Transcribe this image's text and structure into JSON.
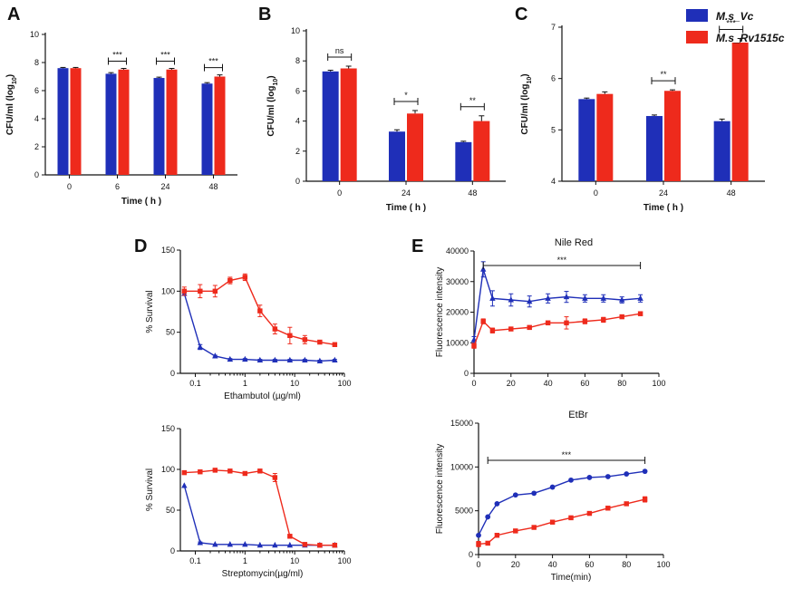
{
  "colors": {
    "vc": "#1f2fb8",
    "rv": "#ee2a1c",
    "axis": "#111111"
  },
  "legend": [
    {
      "key": "vc",
      "label": "M.s_Vc"
    },
    {
      "key": "rv",
      "label": "M.s_Rv1515c"
    }
  ],
  "chart_data": [
    {
      "id": "A",
      "type": "bar",
      "letter": "A",
      "categories": [
        "0",
        "6",
        "24",
        "48"
      ],
      "series": [
        {
          "name": "M.s_Vc",
          "key": "vc",
          "values": [
            7.6,
            7.2,
            6.9,
            6.5
          ],
          "errors": [
            0.05,
            0.08,
            0.06,
            0.07
          ]
        },
        {
          "name": "M.s_Rv1515c",
          "key": "rv",
          "values": [
            7.6,
            7.5,
            7.5,
            7.0
          ],
          "errors": [
            0.05,
            0.08,
            0.08,
            0.12
          ]
        }
      ],
      "significance": [
        "",
        "***",
        "***",
        "***"
      ],
      "xlabel": "Time ( h )",
      "ylabel": "CFU/ml (log10)",
      "ylim": [
        0,
        10
      ],
      "yticks": [
        "0",
        "2",
        "4",
        "6",
        "8",
        "10"
      ]
    },
    {
      "id": "B",
      "type": "bar",
      "letter": "B",
      "categories": [
        "0",
        "24",
        "48"
      ],
      "series": [
        {
          "name": "M.s_Vc",
          "key": "vc",
          "values": [
            7.3,
            3.3,
            2.6
          ],
          "errors": [
            0.08,
            0.12,
            0.06
          ]
        },
        {
          "name": "M.s_Rv1515c",
          "key": "rv",
          "values": [
            7.5,
            4.5,
            4.0
          ],
          "errors": [
            0.15,
            0.2,
            0.35
          ]
        }
      ],
      "significance": [
        "ns",
        "*",
        "**"
      ],
      "xlabel": "Time ( h )",
      "ylabel": "CFU/ml (log10)",
      "ylim": [
        0,
        10
      ],
      "yticks": [
        "0",
        "2",
        "4",
        "6",
        "8",
        "10"
      ]
    },
    {
      "id": "C",
      "type": "bar",
      "letter": "C",
      "categories": [
        "0",
        "24",
        "48"
      ],
      "series": [
        {
          "name": "M.s_Vc",
          "key": "vc",
          "values": [
            5.6,
            5.27,
            5.17
          ],
          "errors": [
            0.02,
            0.02,
            0.04
          ]
        },
        {
          "name": "M.s_Rv1515c",
          "key": "rv",
          "values": [
            5.7,
            5.76,
            6.7
          ],
          "errors": [
            0.04,
            0.02,
            0.08
          ]
        }
      ],
      "significance": [
        "",
        "**",
        "***"
      ],
      "xlabel": "Time ( h )",
      "ylabel": "CFU/ml (log10)",
      "ylim": [
        4,
        7
      ],
      "yticks": [
        "4",
        "5",
        "6",
        "7"
      ]
    },
    {
      "id": "D1",
      "type": "line",
      "letter": "D",
      "xscale": "log",
      "series": [
        {
          "name": "M.s_Vc",
          "key": "vc",
          "marker": "triangle",
          "x": [
            0.06,
            0.125,
            0.25,
            0.5,
            1,
            2,
            4,
            8,
            16,
            32,
            64
          ],
          "y": [
            97,
            32,
            21,
            17,
            17,
            16,
            16,
            16,
            16,
            15,
            16
          ],
          "errors": [
            0,
            3,
            1,
            1,
            1,
            1,
            1,
            1,
            1,
            1,
            1
          ]
        },
        {
          "name": "M.s_Rv1515c",
          "key": "rv",
          "marker": "square",
          "x": [
            0.06,
            0.125,
            0.25,
            0.5,
            1,
            2,
            4,
            8,
            16,
            32,
            64
          ],
          "y": [
            100,
            100,
            100,
            113,
            117,
            76,
            54,
            46,
            41,
            38,
            35
          ],
          "errors": [
            5,
            8,
            7,
            4,
            4,
            7,
            6,
            10,
            5,
            2,
            1
          ]
        }
      ],
      "xlabel": "Ethambutol (µg/ml)",
      "ylabel": "% Survival",
      "ylim": [
        0,
        150
      ],
      "yticks": [
        "0",
        "50",
        "100",
        "150"
      ],
      "xticks": [
        "0.1",
        "1",
        "10",
        "100"
      ]
    },
    {
      "id": "D2",
      "type": "line",
      "letter": "",
      "xscale": "log",
      "series": [
        {
          "name": "M.s_Vc",
          "key": "vc",
          "marker": "triangle",
          "x": [
            0.06,
            0.125,
            0.25,
            0.5,
            1,
            2,
            4,
            8,
            16,
            32,
            64
          ],
          "y": [
            80,
            10,
            8,
            8,
            8,
            7,
            7,
            7,
            7,
            7,
            7
          ],
          "errors": [
            0,
            1,
            0,
            0,
            0,
            0,
            0,
            0,
            0,
            0,
            0
          ]
        },
        {
          "name": "M.s_Rv1515c",
          "key": "rv",
          "marker": "square",
          "x": [
            0.06,
            0.125,
            0.25,
            0.5,
            1,
            2,
            4,
            8,
            16,
            32,
            64
          ],
          "y": [
            96,
            97,
            99,
            98,
            95,
            98,
            90,
            18,
            8,
            7,
            7
          ],
          "errors": [
            0,
            0,
            1,
            1,
            2,
            2,
            5,
            1,
            1,
            1,
            1
          ]
        }
      ],
      "xlabel": "Streptomycin(µg/ml)",
      "ylabel": "% Survival",
      "ylim": [
        0,
        150
      ],
      "yticks": [
        "0",
        "50",
        "100",
        "150"
      ],
      "xticks": [
        "0.1",
        "1",
        "10",
        "100"
      ]
    },
    {
      "id": "E1",
      "type": "line",
      "letter": "E",
      "title": "Nile Red",
      "xscale": "linear",
      "series": [
        {
          "name": "M.s_Vc",
          "key": "vc",
          "marker": "triangle",
          "x": [
            0,
            5,
            10,
            20,
            30,
            40,
            50,
            60,
            70,
            80,
            90
          ],
          "y": [
            11000,
            34000,
            24500,
            24000,
            23500,
            24500,
            25000,
            24500,
            24500,
            24000,
            24500
          ],
          "errors": [
            1000,
            2500,
            2500,
            2000,
            1800,
            1500,
            1800,
            1200,
            1200,
            1000,
            1200
          ]
        },
        {
          "name": "M.s_Rv1515c",
          "key": "rv",
          "marker": "square",
          "x": [
            0,
            5,
            10,
            20,
            30,
            40,
            50,
            60,
            70,
            80,
            90
          ],
          "y": [
            9000,
            17000,
            14000,
            14500,
            15000,
            16500,
            16500,
            17000,
            17500,
            18500,
            19500
          ],
          "errors": [
            800,
            800,
            800,
            500,
            600,
            600,
            2000,
            800,
            800,
            600,
            600
          ]
        }
      ],
      "significance_text": "***",
      "sig_range": [
        5,
        90
      ],
      "xlabel": "",
      "ylabel": "Fluorescence intensity",
      "xlim": [
        0,
        100
      ],
      "ylim": [
        0,
        40000
      ],
      "yticks": [
        "0",
        "10000",
        "20000",
        "30000",
        "40000"
      ],
      "xticks": [
        "0",
        "20",
        "40",
        "60",
        "80",
        "100"
      ]
    },
    {
      "id": "E2",
      "type": "line",
      "letter": "",
      "title": "EtBr",
      "xscale": "linear",
      "series": [
        {
          "name": "M.s_Vc",
          "key": "vc",
          "marker": "circle",
          "x": [
            0,
            5,
            10,
            20,
            30,
            40,
            50,
            60,
            70,
            80,
            90
          ],
          "y": [
            2200,
            4300,
            5800,
            6800,
            7000,
            7700,
            8500,
            8800,
            8900,
            9200,
            9500
          ],
          "errors": [
            0,
            0,
            0,
            0,
            0,
            0,
            0,
            0,
            0,
            0,
            0
          ]
        },
        {
          "name": "M.s_Rv1515c",
          "key": "rv",
          "marker": "square",
          "x": [
            0,
            5,
            10,
            20,
            30,
            40,
            50,
            60,
            70,
            80,
            90
          ],
          "y": [
            1200,
            1300,
            2200,
            2700,
            3100,
            3700,
            4200,
            4700,
            5300,
            5800,
            6300
          ],
          "errors": [
            300,
            200,
            200,
            150,
            150,
            150,
            150,
            150,
            150,
            200,
            300
          ]
        }
      ],
      "significance_text": "***",
      "sig_range": [
        5,
        90
      ],
      "xlabel": "Time(min)",
      "ylabel": "Fluorescence intensity",
      "xlim": [
        0,
        100
      ],
      "ylim": [
        0,
        15000
      ],
      "yticks": [
        "0",
        "5000",
        "10000",
        "15000"
      ],
      "xticks": [
        "0",
        "20",
        "40",
        "60",
        "80",
        "100"
      ]
    }
  ]
}
